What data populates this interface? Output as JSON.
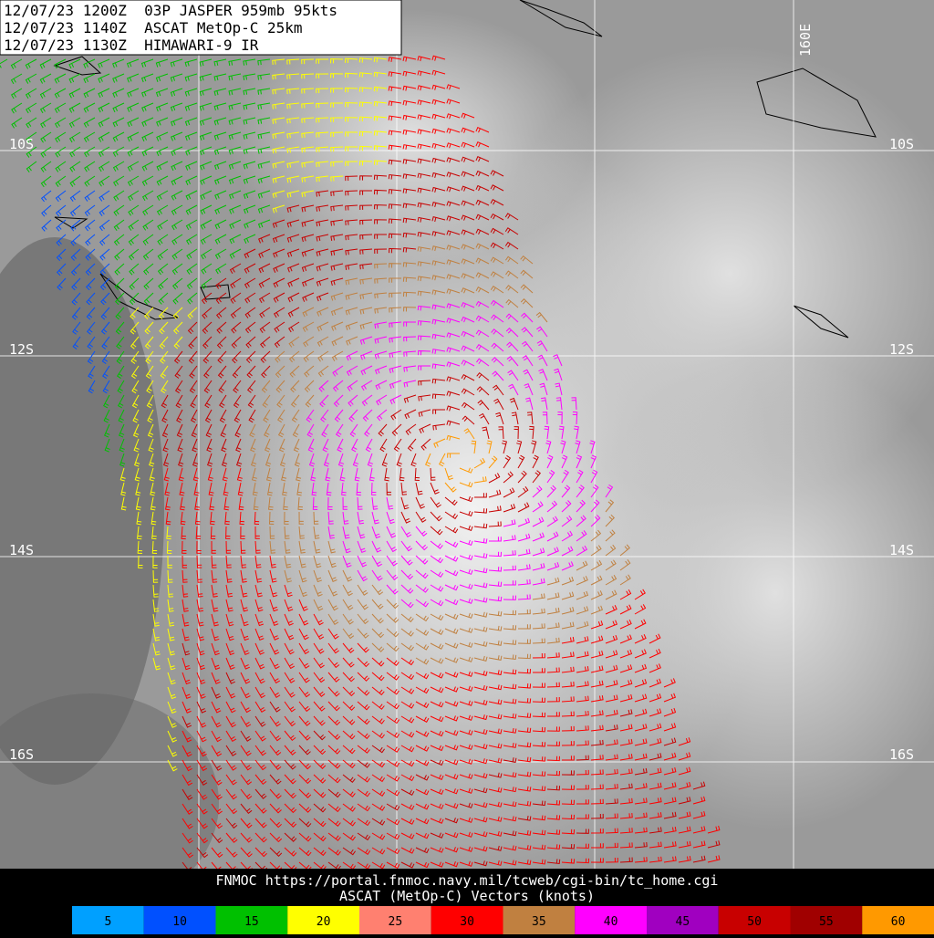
{
  "header": {
    "lines": [
      "12/07/23 1200Z  03P JASPER 959mb 95kts",
      "12/07/23 1140Z  ASCAT MetOp-C 25km",
      "12/07/23 1130Z  HIMAWARI-9 IR"
    ]
  },
  "map": {
    "lat_labels": [
      "10S",
      "12S",
      "14S",
      "16S"
    ],
    "lon_label": "160E"
  },
  "footer": {
    "source": "FNMOC https://portal.fnmoc.navy.mil/tcweb/cgi-bin/tc_home.cgi",
    "caption": "ASCAT (MetOp-C) Vectors (knots)"
  },
  "legend": {
    "items": [
      {
        "label": "5",
        "color": "#00a0ff"
      },
      {
        "label": "10",
        "color": "#0050ff"
      },
      {
        "label": "15",
        "color": "#00c000"
      },
      {
        "label": "20",
        "color": "#ffff00"
      },
      {
        "label": "25",
        "color": "#ff8070"
      },
      {
        "label": "30",
        "color": "#ff0000"
      },
      {
        "label": "35",
        "color": "#c08040"
      },
      {
        "label": "40",
        "color": "#ff00ff"
      },
      {
        "label": "45",
        "color": "#a000c0"
      },
      {
        "label": "50",
        "color": "#c80000"
      },
      {
        "label": "55",
        "color": "#a00000"
      },
      {
        "label": "60",
        "color": "#ff9900"
      }
    ]
  }
}
